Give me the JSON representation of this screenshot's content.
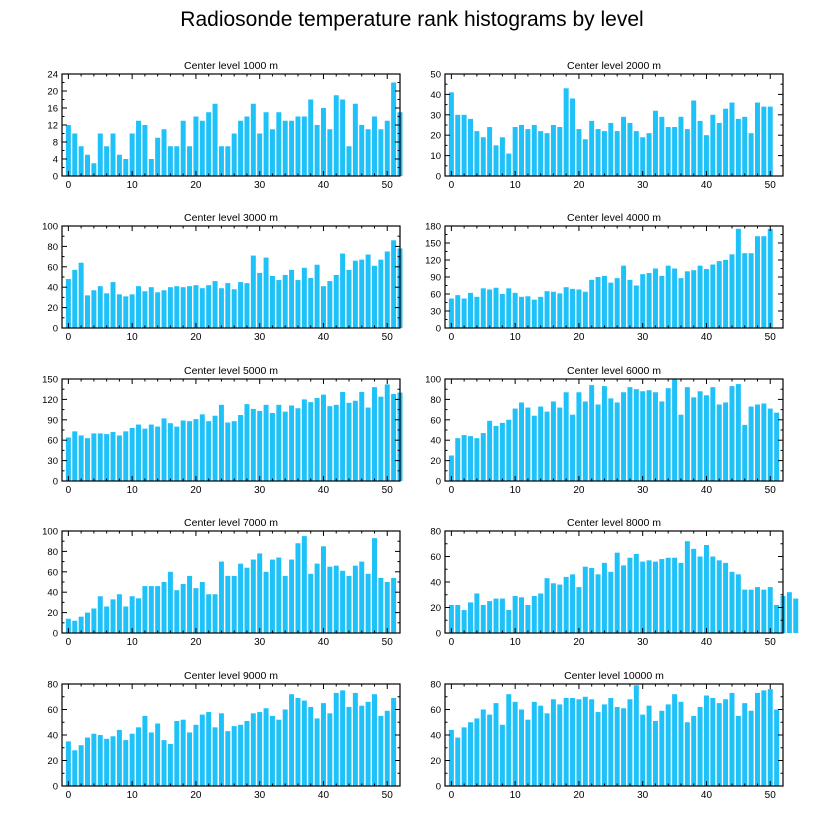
{
  "title": "Radiosonde temperature rank histograms by level",
  "colors": {
    "bar": "#1ec1f8",
    "axis": "#000000",
    "background": "#ffffff"
  },
  "chart_data": [
    {
      "type": "bar",
      "title": "Center level 1000 m",
      "xlim": [
        -1,
        52
      ],
      "ylim": [
        0,
        24
      ],
      "xticks": [
        0,
        10,
        20,
        30,
        40,
        50
      ],
      "yticks": [
        0,
        4,
        8,
        12,
        16,
        20,
        24
      ],
      "values": [
        12,
        10,
        7,
        5,
        3,
        10,
        7,
        10,
        5,
        4,
        10,
        13,
        12,
        4,
        9,
        11,
        7,
        7,
        13,
        7,
        14,
        13,
        15,
        17,
        7,
        7,
        10,
        13,
        14,
        17,
        10,
        15,
        11,
        15,
        13,
        13,
        14,
        14,
        18,
        12,
        16,
        11,
        19,
        18,
        7,
        17,
        12,
        11,
        14,
        11,
        13,
        22,
        15
      ]
    },
    {
      "type": "bar",
      "title": "Center level 2000 m",
      "xlim": [
        -1,
        52
      ],
      "ylim": [
        0,
        50
      ],
      "xticks": [
        0,
        10,
        20,
        30,
        40,
        50
      ],
      "yticks": [
        0,
        10,
        20,
        30,
        40,
        50
      ],
      "values": [
        41,
        30,
        30,
        28,
        22,
        19,
        24,
        15,
        19,
        11,
        24,
        25,
        23,
        25,
        22,
        21,
        25,
        24,
        43,
        38,
        23,
        18,
        27,
        23,
        22,
        26,
        22,
        29,
        26,
        22,
        19,
        21,
        32,
        29,
        24,
        24,
        29,
        23,
        37,
        27,
        20,
        30,
        26,
        33,
        36,
        28,
        29,
        21,
        36,
        34,
        34
      ]
    },
    {
      "type": "bar",
      "title": "Center level 3000 m",
      "xlim": [
        -1,
        52
      ],
      "ylim": [
        0,
        100
      ],
      "xticks": [
        0,
        10,
        20,
        30,
        40,
        50
      ],
      "yticks": [
        0,
        20,
        40,
        60,
        80,
        100
      ],
      "values": [
        48,
        57,
        64,
        32,
        37,
        41,
        34,
        45,
        33,
        31,
        33,
        41,
        36,
        40,
        35,
        37,
        40,
        41,
        40,
        41,
        42,
        39,
        42,
        46,
        39,
        44,
        38,
        45,
        44,
        71,
        54,
        69,
        51,
        47,
        52,
        57,
        47,
        59,
        49,
        62,
        41,
        46,
        52,
        73,
        57,
        66,
        67,
        72,
        61,
        67,
        75,
        86,
        78
      ]
    },
    {
      "type": "bar",
      "title": "Center level 4000 m",
      "xlim": [
        -1,
        52
      ],
      "ylim": [
        0,
        180
      ],
      "xticks": [
        0,
        10,
        20,
        30,
        40,
        50
      ],
      "yticks": [
        0,
        30,
        60,
        90,
        120,
        150,
        180
      ],
      "values": [
        52,
        58,
        52,
        62,
        55,
        70,
        68,
        71,
        60,
        70,
        62,
        55,
        56,
        50,
        55,
        65,
        64,
        61,
        72,
        69,
        68,
        64,
        85,
        90,
        92,
        80,
        88,
        110,
        85,
        75,
        95,
        97,
        105,
        92,
        110,
        105,
        88,
        100,
        102,
        110,
        104,
        112,
        118,
        120,
        130,
        175,
        132,
        132,
        162,
        162,
        175
      ]
    },
    {
      "type": "bar",
      "title": "Center level 5000 m",
      "xlim": [
        -1,
        52
      ],
      "ylim": [
        0,
        150
      ],
      "xticks": [
        0,
        10,
        20,
        30,
        40,
        50
      ],
      "yticks": [
        0,
        30,
        60,
        90,
        120,
        150
      ],
      "values": [
        64,
        73,
        67,
        63,
        70,
        70,
        69,
        72,
        67,
        73,
        78,
        83,
        77,
        83,
        80,
        92,
        85,
        80,
        89,
        88,
        91,
        98,
        88,
        96,
        112,
        86,
        88,
        97,
        113,
        106,
        103,
        112,
        100,
        112,
        102,
        111,
        107,
        120,
        116,
        122,
        127,
        110,
        112,
        131,
        115,
        118,
        131,
        108,
        138,
        124,
        142,
        128,
        130
      ]
    },
    {
      "type": "bar",
      "title": "Center level 6000 m",
      "xlim": [
        -1,
        52
      ],
      "ylim": [
        0,
        100
      ],
      "xticks": [
        0,
        10,
        20,
        30,
        40,
        50
      ],
      "yticks": [
        0,
        20,
        40,
        60,
        80,
        100
      ],
      "values": [
        25,
        42,
        45,
        44,
        42,
        47,
        59,
        54,
        57,
        60,
        71,
        77,
        72,
        64,
        73,
        68,
        78,
        72,
        87,
        65,
        87,
        78,
        94,
        75,
        93,
        81,
        77,
        87,
        92,
        90,
        88,
        89,
        87,
        78,
        91,
        100,
        65,
        92,
        82,
        88,
        84,
        92,
        75,
        77,
        93,
        95,
        55,
        73,
        75,
        76,
        71,
        67
      ]
    },
    {
      "type": "bar",
      "title": "Center level 7000 m",
      "xlim": [
        -1,
        52
      ],
      "ylim": [
        0,
        100
      ],
      "xticks": [
        0,
        10,
        20,
        30,
        40,
        50
      ],
      "yticks": [
        0,
        20,
        40,
        60,
        80,
        100
      ],
      "values": [
        14,
        12,
        16,
        20,
        24,
        36,
        26,
        33,
        38,
        26,
        36,
        34,
        46,
        46,
        46,
        50,
        60,
        42,
        48,
        56,
        44,
        50,
        38,
        38,
        70,
        56,
        56,
        68,
        64,
        72,
        78,
        60,
        72,
        74,
        56,
        72,
        88,
        95,
        58,
        68,
        85,
        65,
        66,
        61,
        56,
        66,
        70,
        58,
        93,
        54,
        50,
        54
      ]
    },
    {
      "type": "bar",
      "title": "Center level 8000 m",
      "xlim": [
        -1,
        52
      ],
      "ylim": [
        0,
        80
      ],
      "xticks": [
        0,
        10,
        20,
        30,
        40,
        50
      ],
      "yticks": [
        0,
        20,
        40,
        60,
        80
      ],
      "values": [
        22,
        22,
        18,
        24,
        31,
        22,
        25,
        27,
        27,
        18,
        29,
        28,
        22,
        29,
        31,
        43,
        39,
        38,
        44,
        46,
        36,
        52,
        51,
        46,
        55,
        48,
        63,
        53,
        59,
        62,
        56,
        57,
        56,
        58,
        59,
        59,
        55,
        72,
        66,
        60,
        69,
        60,
        57,
        55,
        48,
        46,
        34,
        34,
        36,
        34,
        36,
        22,
        29,
        32,
        27
      ]
    },
    {
      "type": "bar",
      "title": "Center level 9000 m",
      "xlim": [
        -1,
        52
      ],
      "ylim": [
        0,
        80
      ],
      "xticks": [
        0,
        10,
        20,
        30,
        40,
        50
      ],
      "yticks": [
        0,
        20,
        40,
        60,
        80
      ],
      "values": [
        35,
        28,
        32,
        38,
        41,
        40,
        37,
        39,
        44,
        36,
        41,
        46,
        55,
        42,
        49,
        36,
        33,
        51,
        52,
        42,
        48,
        56,
        58,
        46,
        57,
        43,
        47,
        48,
        51,
        57,
        58,
        61,
        55,
        52,
        60,
        72,
        69,
        67,
        62,
        53,
        65,
        57,
        73,
        75,
        62,
        73,
        63,
        66,
        72,
        55,
        59,
        69
      ]
    },
    {
      "type": "bar",
      "title": "Center level 10000 m",
      "xlim": [
        -1,
        52
      ],
      "ylim": [
        0,
        80
      ],
      "xticks": [
        0,
        10,
        20,
        30,
        40,
        50
      ],
      "yticks": [
        0,
        20,
        40,
        60,
        80
      ],
      "values": [
        44,
        38,
        46,
        50,
        53,
        60,
        56,
        65,
        48,
        72,
        66,
        60,
        52,
        66,
        63,
        57,
        68,
        64,
        69,
        69,
        68,
        70,
        68,
        58,
        64,
        69,
        62,
        61,
        68,
        79,
        56,
        63,
        51,
        59,
        64,
        72,
        66,
        50,
        55,
        62,
        71,
        69,
        65,
        68,
        73,
        55,
        65,
        59,
        73,
        75,
        76,
        60
      ]
    }
  ]
}
